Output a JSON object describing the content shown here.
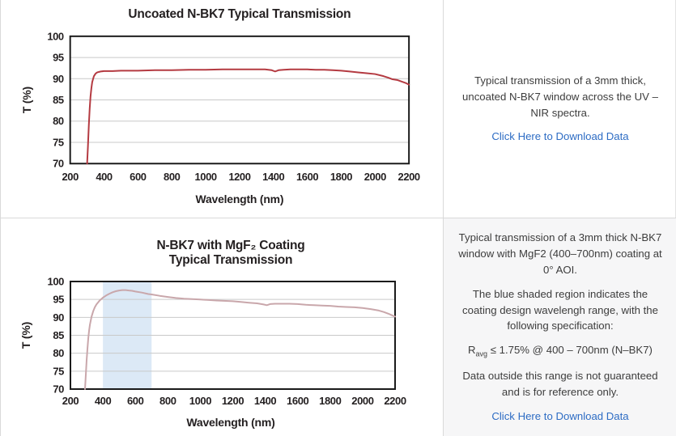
{
  "panels": [
    {
      "paragraphs": [
        "Typical transmission of a 3mm thick, uncoated N-BK7 window across the UV – NIR spectra."
      ],
      "link": "Click Here to Download Data"
    },
    {
      "paragraphs": [
        "Typical transmission of a 3mm thick N-BK7 window with MgF2 (400–700nm) coating at 0° AOI.",
        "The blue shaded region indicates the coating design wavelengh range, with the following specification:",
        "Data outside this range is not guaranteed and is for reference only."
      ],
      "spec": {
        "base": "R",
        "sub": "avg",
        "rest": " ≤ 1.75% @ 400 – 700nm (N–BK7)"
      },
      "link": "Click Here to Download Data"
    }
  ],
  "colors": {
    "uncoated_line": "#b43a41",
    "coated_line": "#c9a7ab",
    "band_blue": "#dce9f6",
    "grid": "#c9c9c9",
    "axis": "#1b1b1b",
    "link": "#2d6cc4"
  },
  "chart_data": [
    {
      "type": "line",
      "title_lines": [
        "Uncoated N-BK7 Typical Transmission"
      ],
      "xlabel": "Wavelength (nm)",
      "ylabel": "T (%)",
      "xlim": [
        200,
        2200
      ],
      "ylim": [
        70,
        100
      ],
      "x_ticks": [
        200,
        400,
        600,
        800,
        1000,
        1200,
        1400,
        1600,
        1800,
        2000,
        2200
      ],
      "y_ticks": [
        70,
        75,
        80,
        85,
        90,
        95,
        100
      ],
      "grid": "horizontal",
      "legend": "none",
      "line_color": "#b43a41",
      "band": null,
      "series": [
        {
          "name": "Uncoated N-BK7",
          "points": [
            [
              300,
              70
            ],
            [
              305,
              74
            ],
            [
              310,
              79
            ],
            [
              315,
              83
            ],
            [
              320,
              85.8
            ],
            [
              325,
              87.8
            ],
            [
              330,
              89.2
            ],
            [
              340,
              90.6
            ],
            [
              350,
              91.2
            ],
            [
              360,
              91.5
            ],
            [
              380,
              91.7
            ],
            [
              400,
              91.8
            ],
            [
              450,
              91.8
            ],
            [
              500,
              91.9
            ],
            [
              600,
              91.9
            ],
            [
              700,
              92.0
            ],
            [
              800,
              92.0
            ],
            [
              900,
              92.1
            ],
            [
              1000,
              92.1
            ],
            [
              1100,
              92.2
            ],
            [
              1200,
              92.2
            ],
            [
              1300,
              92.2
            ],
            [
              1350,
              92.2
            ],
            [
              1390,
              92.0
            ],
            [
              1410,
              91.7
            ],
            [
              1430,
              92.0
            ],
            [
              1460,
              92.1
            ],
            [
              1500,
              92.2
            ],
            [
              1550,
              92.2
            ],
            [
              1600,
              92.2
            ],
            [
              1650,
              92.1
            ],
            [
              1700,
              92.1
            ],
            [
              1750,
              92.0
            ],
            [
              1800,
              91.9
            ],
            [
              1850,
              91.7
            ],
            [
              1900,
              91.5
            ],
            [
              1950,
              91.3
            ],
            [
              2000,
              91.1
            ],
            [
              2050,
              90.6
            ],
            [
              2080,
              90.2
            ],
            [
              2100,
              89.9
            ],
            [
              2130,
              89.7
            ],
            [
              2160,
              89.3
            ],
            [
              2180,
              89.0
            ],
            [
              2200,
              88.6
            ]
          ]
        }
      ]
    },
    {
      "type": "line",
      "title_lines": [
        "N-BK7 with MgF₂ Coating",
        "Typical Transmission"
      ],
      "xlabel": "Wavelength (nm)",
      "ylabel": "T (%)",
      "xlim": [
        200,
        2200
      ],
      "ylim": [
        70,
        100
      ],
      "x_ticks": [
        200,
        400,
        600,
        800,
        1000,
        1200,
        1400,
        1600,
        1800,
        2000,
        2200
      ],
      "y_ticks": [
        70,
        75,
        80,
        85,
        90,
        95,
        100
      ],
      "grid": "horizontal",
      "legend": "none",
      "line_color": "#c9a7ab",
      "band": {
        "from": 400,
        "to": 700,
        "color": "#dce9f6",
        "label": "coating design wavelength range"
      },
      "series": [
        {
          "name": "N-BK7 with MgF2 coating",
          "points": [
            [
              290,
              70
            ],
            [
              295,
              74
            ],
            [
              300,
              78
            ],
            [
              305,
              81.5
            ],
            [
              310,
              84.3
            ],
            [
              315,
              86.4
            ],
            [
              320,
              88
            ],
            [
              330,
              90.2
            ],
            [
              340,
              91.7
            ],
            [
              350,
              92.8
            ],
            [
              360,
              93.6
            ],
            [
              380,
              94.7
            ],
            [
              400,
              95.5
            ],
            [
              420,
              96.1
            ],
            [
              440,
              96.6
            ],
            [
              460,
              97.0
            ],
            [
              480,
              97.3
            ],
            [
              500,
              97.5
            ],
            [
              520,
              97.6
            ],
            [
              540,
              97.6
            ],
            [
              560,
              97.5
            ],
            [
              580,
              97.4
            ],
            [
              600,
              97.2
            ],
            [
              640,
              96.9
            ],
            [
              680,
              96.5
            ],
            [
              700,
              96.4
            ],
            [
              750,
              96.0
            ],
            [
              800,
              95.7
            ],
            [
              850,
              95.4
            ],
            [
              900,
              95.2
            ],
            [
              950,
              95.1
            ],
            [
              1000,
              95.0
            ],
            [
              1100,
              94.7
            ],
            [
              1200,
              94.5
            ],
            [
              1250,
              94.3
            ],
            [
              1300,
              94.1
            ],
            [
              1350,
              93.9
            ],
            [
              1390,
              93.6
            ],
            [
              1410,
              93.4
            ],
            [
              1430,
              93.7
            ],
            [
              1460,
              93.8
            ],
            [
              1500,
              93.8
            ],
            [
              1550,
              93.8
            ],
            [
              1600,
              93.7
            ],
            [
              1650,
              93.5
            ],
            [
              1700,
              93.4
            ],
            [
              1750,
              93.3
            ],
            [
              1800,
              93.2
            ],
            [
              1850,
              93.0
            ],
            [
              1900,
              92.9
            ],
            [
              1950,
              92.8
            ],
            [
              2000,
              92.6
            ],
            [
              2050,
              92.3
            ],
            [
              2100,
              91.9
            ],
            [
              2130,
              91.5
            ],
            [
              2160,
              91.0
            ],
            [
              2180,
              90.6
            ],
            [
              2200,
              90.2
            ]
          ]
        }
      ]
    }
  ]
}
